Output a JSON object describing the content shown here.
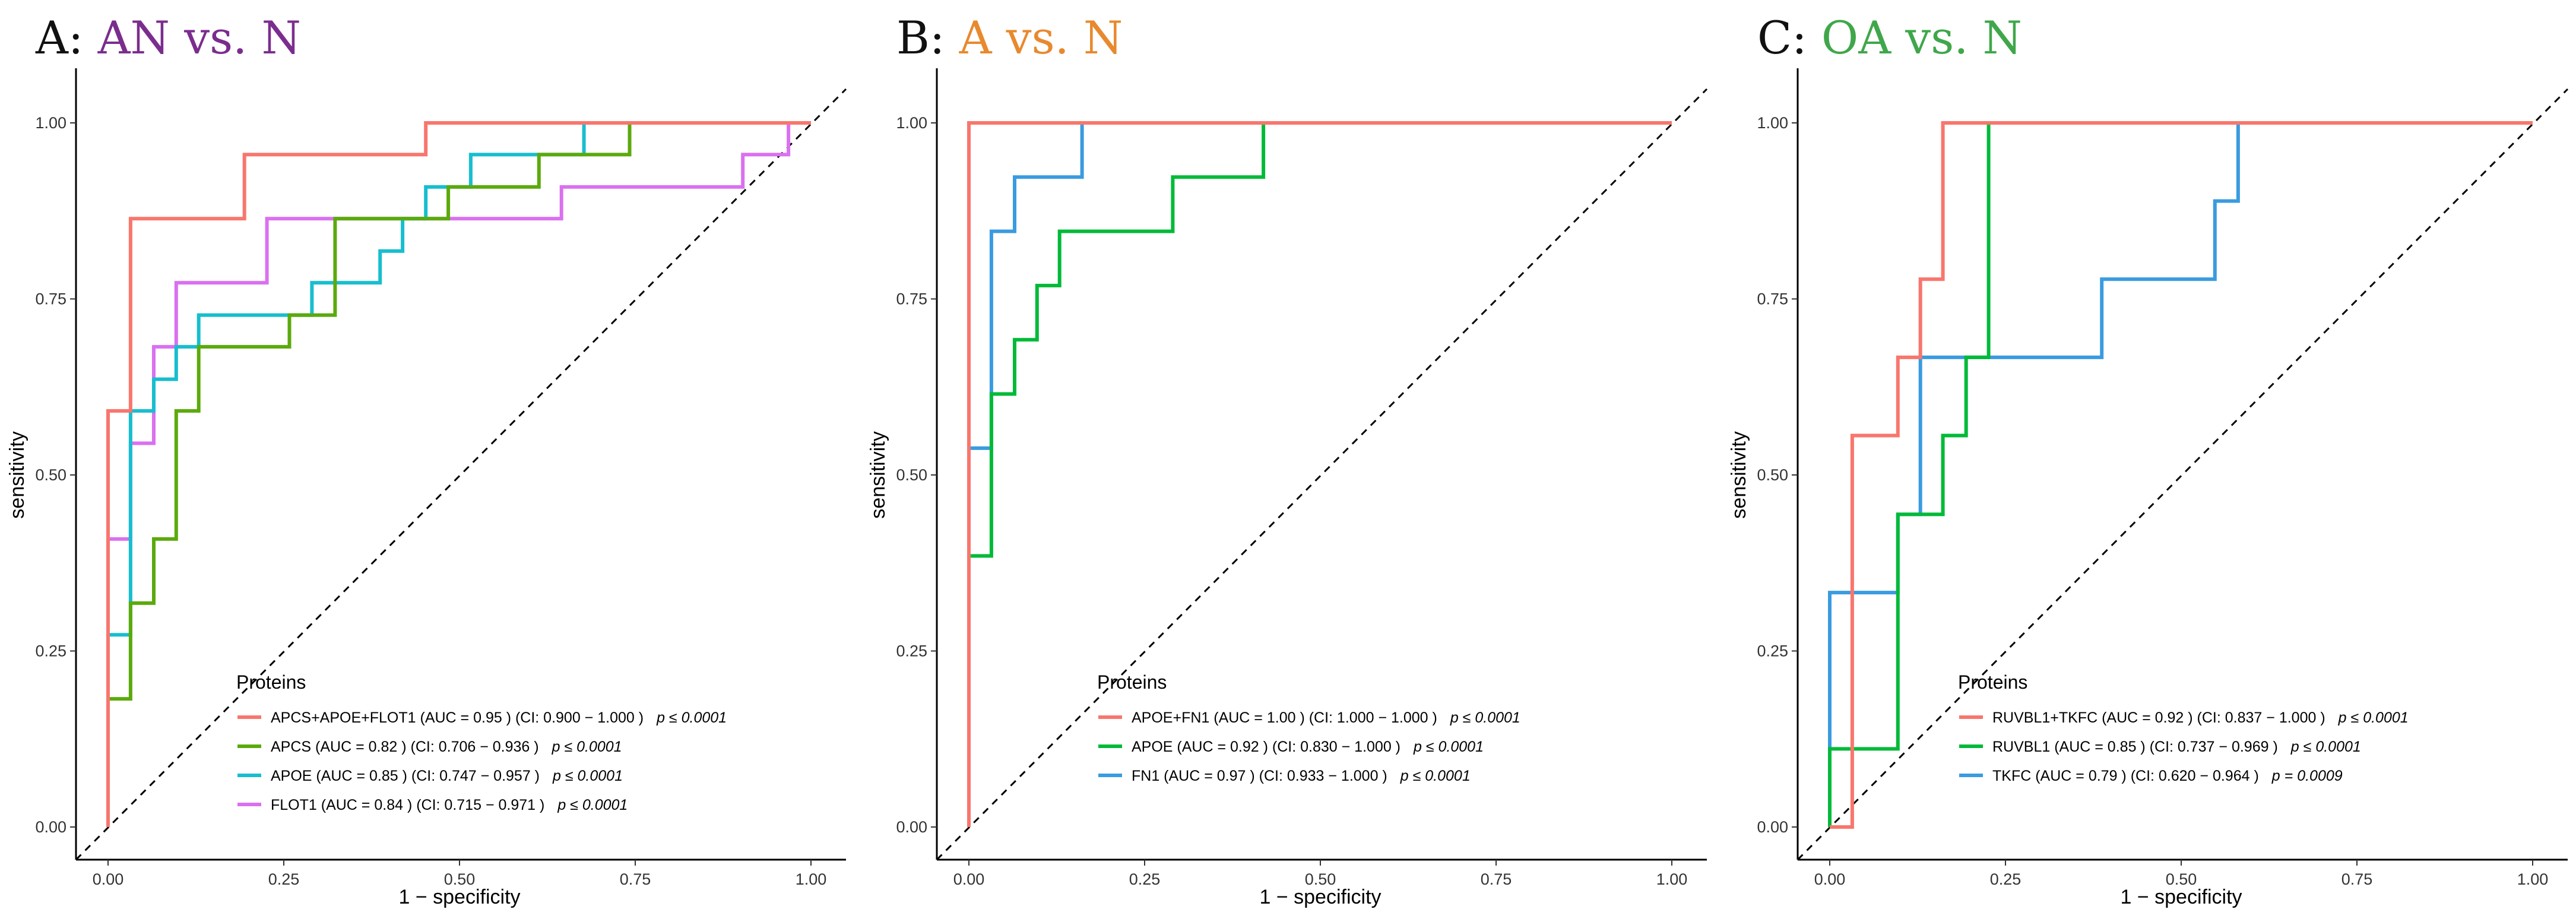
{
  "chart_data": [
    {
      "type": "line",
      "title_prefix": "A: ",
      "title_main": "AN vs. N",
      "title_color": "#7B2D8E",
      "xlabel": "1 − specificity",
      "ylabel": "sensitivity",
      "xlim": [
        0,
        1
      ],
      "ylim": [
        0,
        1
      ],
      "x_ticks": [
        "0.00",
        "0.25",
        "0.50",
        "0.75",
        "1.00"
      ],
      "y_ticks": [
        "0.00",
        "0.25",
        "0.50",
        "0.75",
        "1.00"
      ],
      "grid": false,
      "legend_title": "Proteins",
      "legend_position": "bottom-center",
      "series": [
        {
          "name": "APCS+APOE+FLOT1",
          "label": "APCS+APOE+FLOT1 (AUC =  0.95 )   (CI:  0.900  −  1.000 )",
          "p_text": "p ≤ 0.0001",
          "color": "#F8766D",
          "x": [
            0,
            0,
            0.032,
            0.032,
            0.194,
            0.194,
            0.452,
            0.452,
            1.0
          ],
          "y": [
            0,
            0.591,
            0.591,
            0.864,
            0.864,
            0.955,
            0.955,
            1.0,
            1.0
          ]
        },
        {
          "name": "APCS",
          "label": "APCS (AUC =  0.82 )   (CI:  0.706  −  0.936 )",
          "p_text": "p ≤ 0.0001",
          "color": "#5BAA0C",
          "x": [
            0,
            0,
            0.032,
            0.032,
            0.065,
            0.065,
            0.097,
            0.097,
            0.129,
            0.129,
            0.258,
            0.258,
            0.323,
            0.323,
            0.452,
            0.452,
            0.484,
            0.484,
            0.613,
            0.613,
            0.742,
            0.742,
            1.0
          ],
          "y": [
            0,
            0.182,
            0.182,
            0.318,
            0.318,
            0.409,
            0.409,
            0.591,
            0.591,
            0.682,
            0.682,
            0.727,
            0.727,
            0.864,
            0.864,
            0.864,
            0.864,
            0.909,
            0.909,
            0.955,
            0.955,
            1.0,
            1.0
          ]
        },
        {
          "name": "APOE",
          "label": "APOE (AUC =  0.85 )   (CI:  0.747  −  0.957 )",
          "p_text": "p ≤ 0.0001",
          "color": "#17BECF",
          "x": [
            0,
            0,
            0.032,
            0.032,
            0.065,
            0.065,
            0.097,
            0.097,
            0.129,
            0.129,
            0.29,
            0.29,
            0.387,
            0.387,
            0.419,
            0.419,
            0.452,
            0.452,
            0.516,
            0.516,
            0.677,
            0.677,
            1.0
          ],
          "y": [
            0,
            0.273,
            0.273,
            0.591,
            0.591,
            0.636,
            0.636,
            0.682,
            0.682,
            0.727,
            0.727,
            0.773,
            0.773,
            0.818,
            0.818,
            0.864,
            0.864,
            0.909,
            0.909,
            0.955,
            0.955,
            1.0,
            1.0
          ]
        },
        {
          "name": "FLOT1",
          "label": "FLOT1 (AUC =  0.84 )   (CI:  0.715  −  0.971 )",
          "p_text": "p ≤ 0.0001",
          "color": "#DA70F0",
          "x": [
            0,
            0,
            0.032,
            0.032,
            0.065,
            0.065,
            0.097,
            0.097,
            0.226,
            0.226,
            0.645,
            0.645,
            0.903,
            0.903,
            0.968,
            0.968,
            1.0
          ],
          "y": [
            0,
            0.409,
            0.409,
            0.545,
            0.545,
            0.682,
            0.682,
            0.773,
            0.773,
            0.864,
            0.864,
            0.909,
            0.909,
            0.955,
            0.955,
            1.0,
            1.0
          ]
        }
      ]
    },
    {
      "type": "line",
      "title_prefix": "B: ",
      "title_main": "A vs. N",
      "title_color": "#E8892E",
      "xlabel": "1 − specificity",
      "ylabel": "sensitivity",
      "xlim": [
        0,
        1
      ],
      "ylim": [
        0,
        1
      ],
      "x_ticks": [
        "0.00",
        "0.25",
        "0.50",
        "0.75",
        "1.00"
      ],
      "y_ticks": [
        "0.00",
        "0.25",
        "0.50",
        "0.75",
        "1.00"
      ],
      "grid": false,
      "legend_title": "Proteins",
      "legend_position": "bottom-center",
      "series": [
        {
          "name": "APOE+FN1",
          "label": "APOE+FN1 (AUC =  1.00 )   (CI:  1.000  −  1.000 )",
          "p_text": "p ≤ 0.0001",
          "color": "#F8766D",
          "x": [
            0,
            0,
            1.0
          ],
          "y": [
            0,
            1.0,
            1.0
          ]
        },
        {
          "name": "APOE",
          "label": "APOE (AUC =  0.92 )   (CI:  0.830  −  1.000 )",
          "p_text": "p ≤ 0.0001",
          "color": "#00BA38",
          "x": [
            0,
            0,
            0.032,
            0.032,
            0.065,
            0.065,
            0.097,
            0.097,
            0.129,
            0.129,
            0.29,
            0.29,
            0.419,
            0.419,
            1.0
          ],
          "y": [
            0,
            0.385,
            0.385,
            0.615,
            0.615,
            0.692,
            0.692,
            0.769,
            0.769,
            0.846,
            0.846,
            0.923,
            0.923,
            1.0,
            1.0
          ]
        },
        {
          "name": "FN1",
          "label": "FN1 (AUC =  0.97 )   (CI:  0.933  −  1.000 )",
          "p_text": "p ≤ 0.0001",
          "color": "#3A9BE0",
          "x": [
            0,
            0,
            0.032,
            0.032,
            0.065,
            0.065,
            0.161,
            0.161,
            1.0
          ],
          "y": [
            0,
            0.538,
            0.538,
            0.846,
            0.846,
            0.923,
            0.923,
            1.0,
            1.0
          ]
        }
      ]
    },
    {
      "type": "line",
      "title_prefix": "C: ",
      "title_main": "OA vs. N",
      "title_color": "#3FA74A",
      "xlabel": "1 − specificity",
      "ylabel": "sensitivity",
      "xlim": [
        0,
        1
      ],
      "ylim": [
        0,
        1
      ],
      "x_ticks": [
        "0.00",
        "0.25",
        "0.50",
        "0.75",
        "1.00"
      ],
      "y_ticks": [
        "0.00",
        "0.25",
        "0.50",
        "0.75",
        "1.00"
      ],
      "grid": false,
      "legend_title": "Proteins",
      "legend_position": "bottom-center",
      "series": [
        {
          "name": "RUVBL1+TKFC",
          "label": "RUVBL1+TKFC (AUC = 0.92 )   (CI:  0.837  −  1.000 )",
          "p_text": "p ≤ 0.0001",
          "color": "#F8766D",
          "x": [
            0,
            0.032,
            0.032,
            0.097,
            0.097,
            0.129,
            0.129,
            0.161,
            0.161,
            1.0
          ],
          "y": [
            0,
            0,
            0.556,
            0.556,
            0.667,
            0.667,
            0.778,
            0.778,
            1.0,
            1.0
          ]
        },
        {
          "name": "RUVBL1",
          "label": "RUVBL1 (AUC = 0.85 )   (CI:  0.737  −  0.969 )",
          "p_text": "p ≤ 0.0001",
          "color": "#00BA38",
          "x": [
            0,
            0,
            0.097,
            0.097,
            0.161,
            0.161,
            0.194,
            0.194,
            0.226,
            0.226,
            1.0
          ],
          "y": [
            0,
            0.111,
            0.111,
            0.444,
            0.444,
            0.556,
            0.556,
            0.667,
            0.667,
            1.0,
            1.0
          ]
        },
        {
          "name": "TKFC",
          "label": "TKFC (AUC = 0.79 )   (CI:  0.620  −  0.964 )",
          "p_text": "p =  0.0009",
          "color": "#3A9BE0",
          "x": [
            0,
            0,
            0.097,
            0.097,
            0.129,
            0.129,
            0.387,
            0.387,
            0.548,
            0.548,
            0.581,
            0.581,
            1.0
          ],
          "y": [
            0,
            0.333,
            0.333,
            0.444,
            0.444,
            0.667,
            0.667,
            0.778,
            0.778,
            0.889,
            0.889,
            1.0,
            1.0
          ]
        }
      ]
    }
  ]
}
